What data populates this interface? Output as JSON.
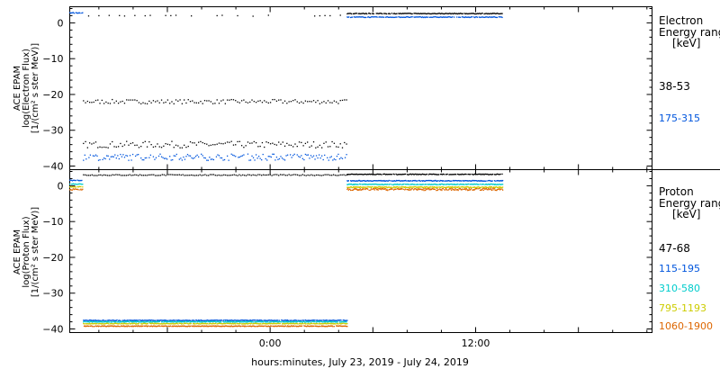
{
  "chart_data": {
    "x_axis": {
      "label": "hours:minutes, July 23, 2019 - July 24, 2019",
      "ticks": [
        {
          "hour": 0,
          "label": "0:00"
        },
        {
          "hour": 12,
          "label": "12:00"
        }
      ],
      "range_hours": [
        -11.7,
        22.3
      ]
    },
    "panels": [
      {
        "type": "scatter",
        "ylabel": [
          "ACE EPAM",
          "log(Electron Flux)",
          "[1/(cm² s ster MeV)]"
        ],
        "ylim": [
          -41,
          4.5
        ],
        "yticks": [
          0,
          -10,
          -20,
          -30,
          -40
        ],
        "legend": {
          "title": [
            "Electron",
            "Energy ranges",
            "[keV]"
          ],
          "entries": [
            {
              "label": "38-53",
              "color": "#000000"
            },
            {
              "label": "175-315",
              "color": "#0055dd"
            }
          ]
        },
        "series": [
          {
            "name": "38-53",
            "color": "#000000",
            "segments": [
              {
                "x0": -10.9,
                "x1": 4.5,
                "y": 2.0,
                "jitter": 0.15,
                "step": 0.3,
                "sparse": true
              },
              {
                "x0": -10.9,
                "x1": 4.5,
                "y": -22.0,
                "jitter": 0.6,
                "step": 0.12
              },
              {
                "x0": -10.9,
                "x1": 4.5,
                "y": -34.0,
                "jitter": 0.9,
                "step": 0.12
              },
              {
                "x0": 4.5,
                "x1": 13.6,
                "y": 2.6,
                "jitter": 0.1,
                "step": 0.05
              }
            ]
          },
          {
            "name": "175-315",
            "color": "#0055dd",
            "segments": [
              {
                "x0": -10.9,
                "x1": 4.5,
                "y": -37.5,
                "jitter": 0.9,
                "step": 0.08
              },
              {
                "x0": 4.5,
                "x1": 13.6,
                "y": 1.6,
                "jitter": 0.1,
                "step": 0.05
              },
              {
                "x0": -11.7,
                "x1": -10.9,
                "y": 2.8,
                "jitter": 0.1,
                "step": 0.05
              }
            ]
          }
        ]
      },
      {
        "type": "scatter",
        "ylabel": [
          "ACE EPAM",
          "log(Proton Flux)",
          "[1/(cm² s ster MeV)]"
        ],
        "ylim": [
          -41,
          4.5
        ],
        "yticks": [
          0,
          -10,
          -20,
          -30,
          -40
        ],
        "legend": {
          "title": [
            "Proton",
            "Energy ranges",
            "[keV]"
          ],
          "entries": [
            {
              "label": "47-68",
              "color": "#000000"
            },
            {
              "label": "115-195",
              "color": "#0055dd"
            },
            {
              "label": "310-580",
              "color": "#00cccc"
            },
            {
              "label": "795-1193",
              "color": "#cccc00"
            },
            {
              "label": "1060-1900",
              "color": "#dd6600"
            }
          ]
        },
        "series": [
          {
            "name": "47-68",
            "color": "#000000",
            "segments": [
              {
                "x0": -10.9,
                "x1": 4.5,
                "y": 3.0,
                "jitter": 0.15,
                "step": 0.1
              },
              {
                "x0": 4.5,
                "x1": 13.6,
                "y": 3.2,
                "jitter": 0.1,
                "step": 0.05
              }
            ]
          },
          {
            "name": "115-195",
            "color": "#0055dd",
            "segments": [
              {
                "x0": -10.9,
                "x1": 4.5,
                "y": -37.6,
                "jitter": 0.1,
                "step": 0.04
              },
              {
                "x0": 4.5,
                "x1": 13.6,
                "y": 1.4,
                "jitter": 0.1,
                "step": 0.04
              },
              {
                "x0": -11.7,
                "x1": -10.9,
                "y": 1.5,
                "jitter": 0.1,
                "step": 0.05
              }
            ]
          },
          {
            "name": "310-580",
            "color": "#00cccc",
            "segments": [
              {
                "x0": -10.9,
                "x1": 4.5,
                "y": -38.0,
                "jitter": 0.1,
                "step": 0.04
              },
              {
                "x0": 4.5,
                "x1": 13.6,
                "y": 0.4,
                "jitter": 0.1,
                "step": 0.04
              },
              {
                "x0": -11.7,
                "x1": -10.9,
                "y": 0.5,
                "jitter": 0.1,
                "step": 0.05
              }
            ]
          },
          {
            "name": "795-1193",
            "color": "#cccc00",
            "segments": [
              {
                "x0": -10.9,
                "x1": 4.5,
                "y": -38.5,
                "jitter": 0.1,
                "step": 0.04
              },
              {
                "x0": 4.5,
                "x1": 13.6,
                "y": -0.4,
                "jitter": 0.15,
                "step": 0.04
              },
              {
                "x0": -11.7,
                "x1": -10.9,
                "y": -0.3,
                "jitter": 0.1,
                "step": 0.05
              }
            ]
          },
          {
            "name": "1060-1900",
            "color": "#dd6600",
            "segments": [
              {
                "x0": -10.9,
                "x1": 4.5,
                "y": -39.2,
                "jitter": 0.1,
                "step": 0.04
              },
              {
                "x0": 4.5,
                "x1": 13.6,
                "y": -1.0,
                "jitter": 0.3,
                "step": 0.04
              },
              {
                "x0": -11.7,
                "x1": -10.9,
                "y": -1.0,
                "jitter": 0.2,
                "step": 0.05
              }
            ]
          }
        ]
      }
    ]
  }
}
